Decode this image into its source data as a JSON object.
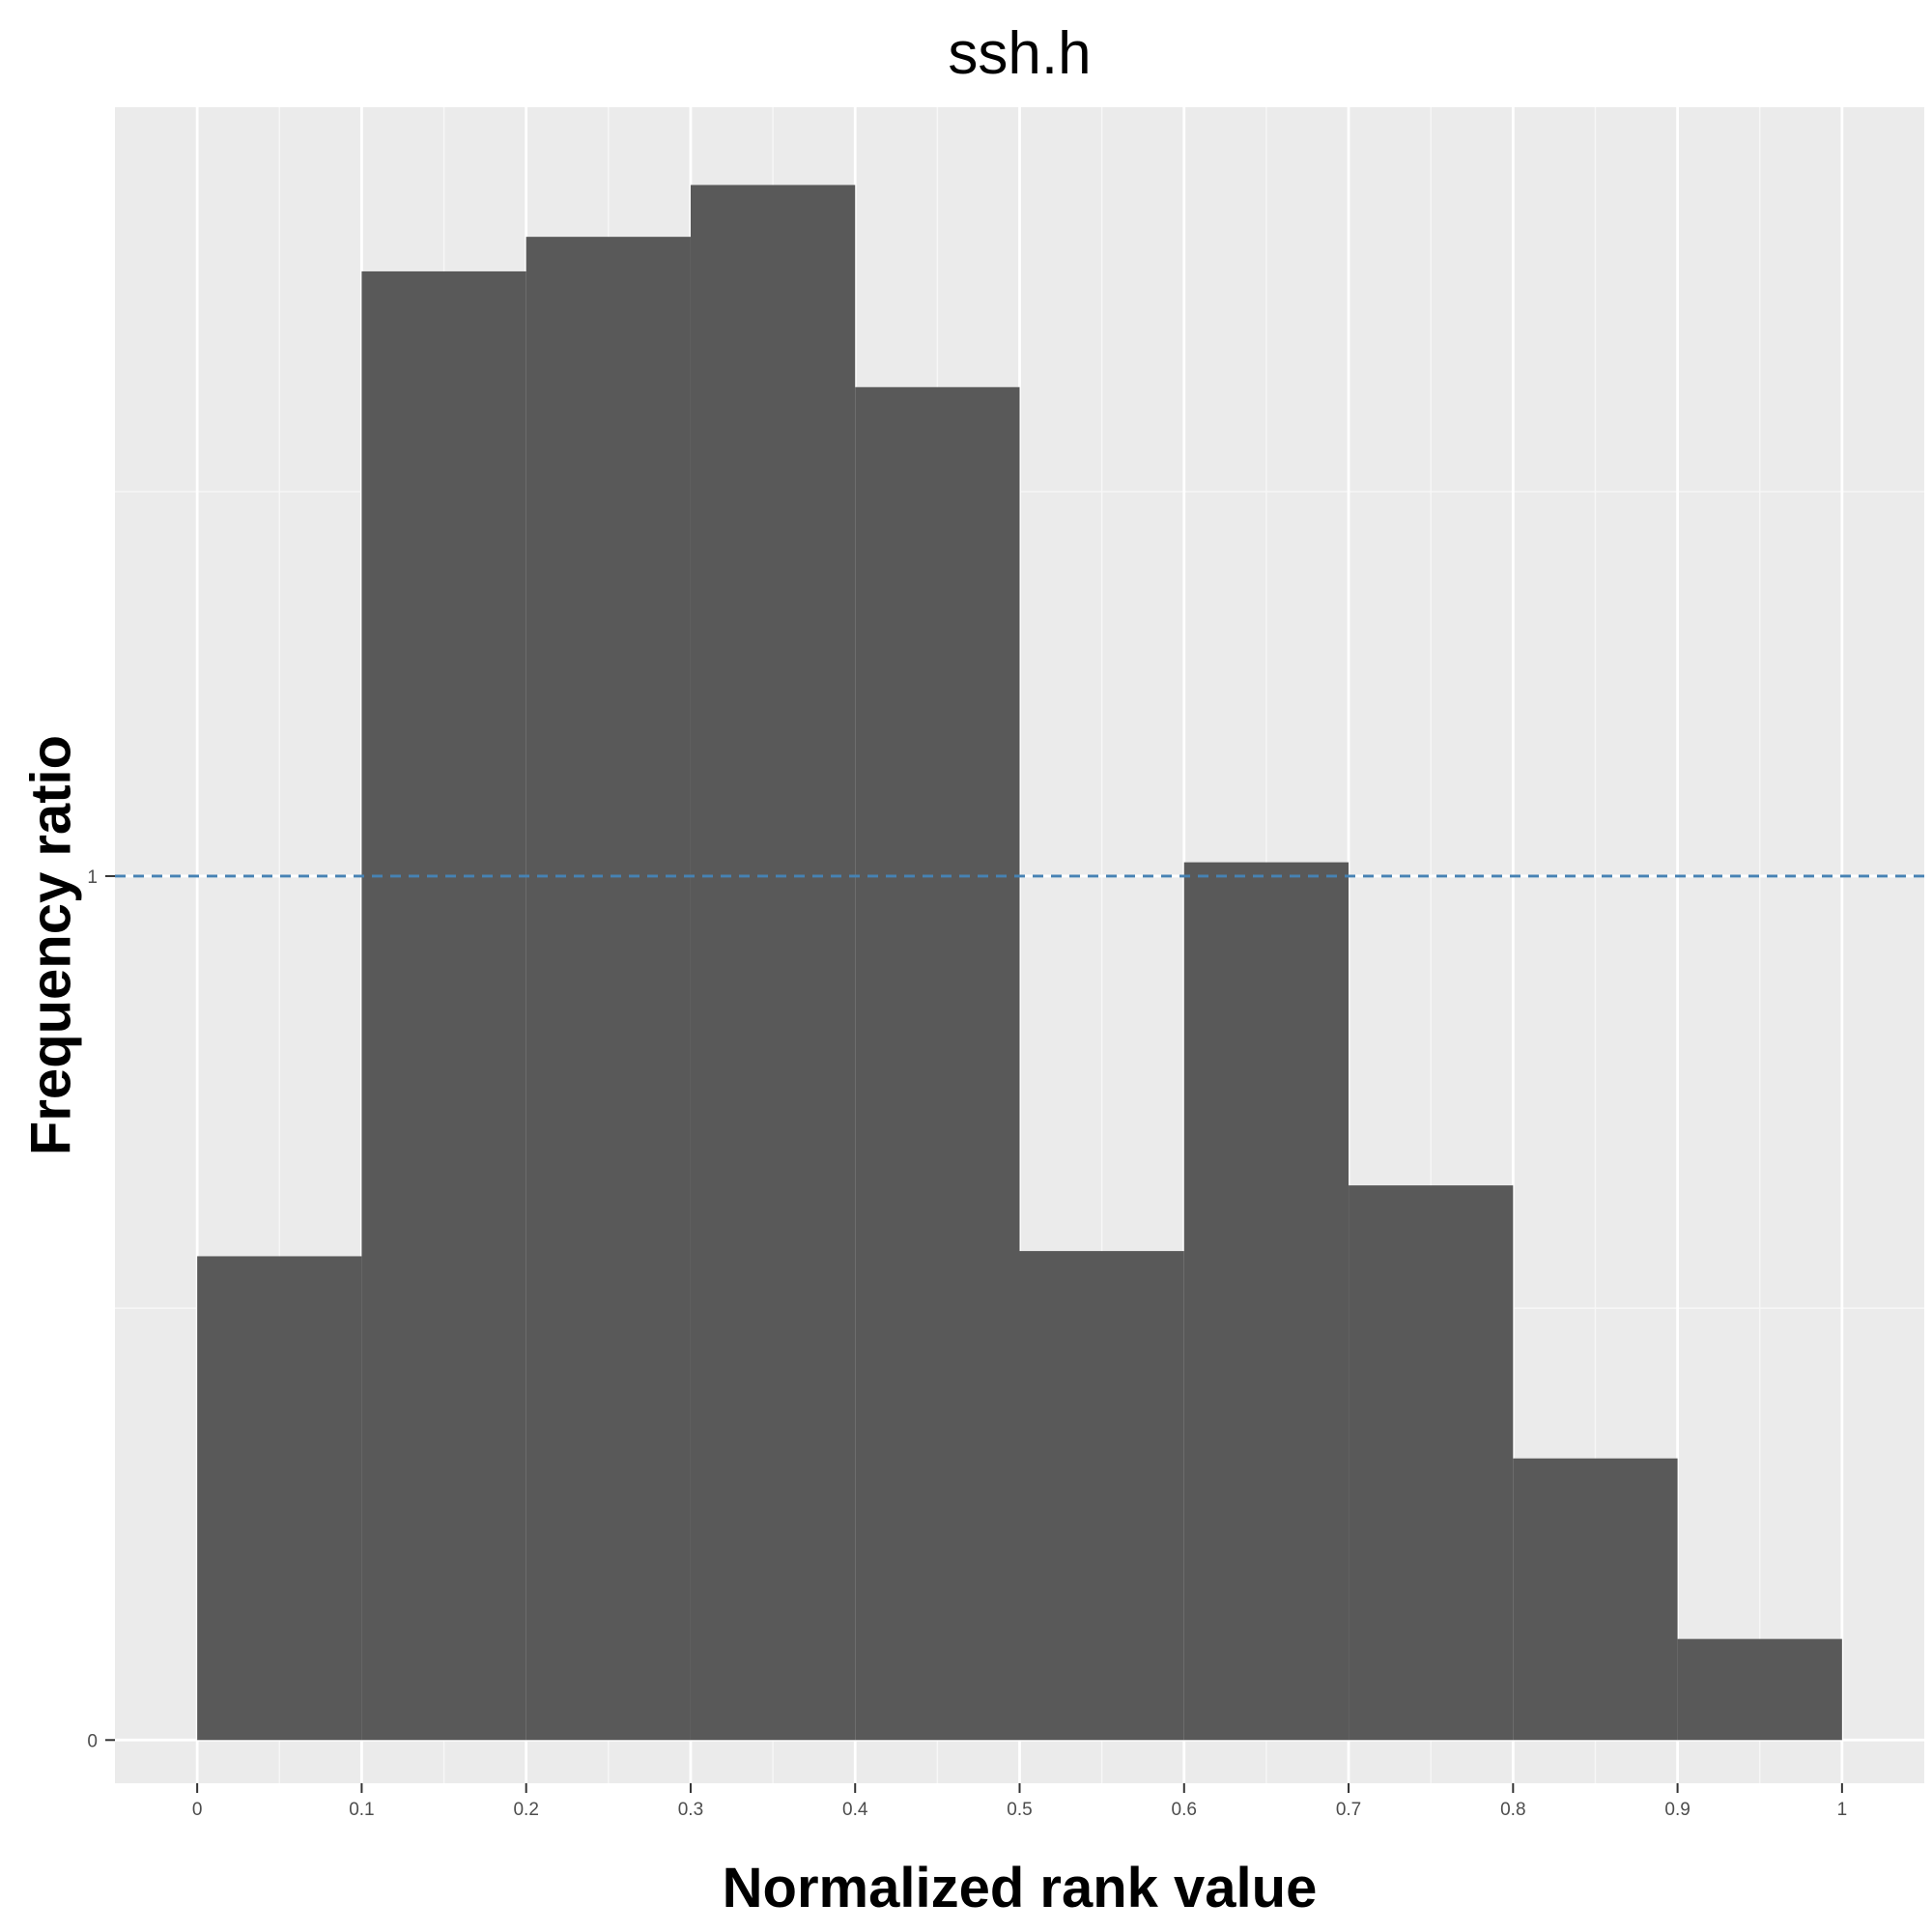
{
  "chart_data": {
    "type": "bar",
    "title": "ssh.h",
    "xlabel": "Normalized rank value",
    "ylabel": "Frequency ratio",
    "bin_edges": [
      0,
      0.1,
      0.2,
      0.3,
      0.4,
      0.5,
      0.6,
      0.7,
      0.8,
      0.9,
      1.0
    ],
    "values": [
      0.56,
      1.7,
      1.74,
      1.8,
      1.566,
      0.566,
      1.016,
      0.642,
      0.326,
      0.117
    ],
    "xlim": [
      -0.05,
      1.05
    ],
    "ylim": [
      -0.05,
      1.89
    ],
    "x_ticks": [
      0,
      0.1,
      0.2,
      0.3,
      0.4,
      0.5,
      0.6,
      0.7,
      0.8,
      0.9,
      1
    ],
    "x_tick_labels": [
      "0",
      "0.1",
      "0.2",
      "0.3",
      "0.4",
      "0.5",
      "0.6",
      "0.7",
      "0.8",
      "0.9",
      "1"
    ],
    "y_ticks": [
      0,
      1
    ],
    "y_tick_labels": [
      "0",
      "1"
    ],
    "reference_line": {
      "y": 1,
      "style": "dashed",
      "color": "#4682b4"
    },
    "bar_color": "#595959",
    "panel_color": "#ebebeb",
    "grid": true
  }
}
